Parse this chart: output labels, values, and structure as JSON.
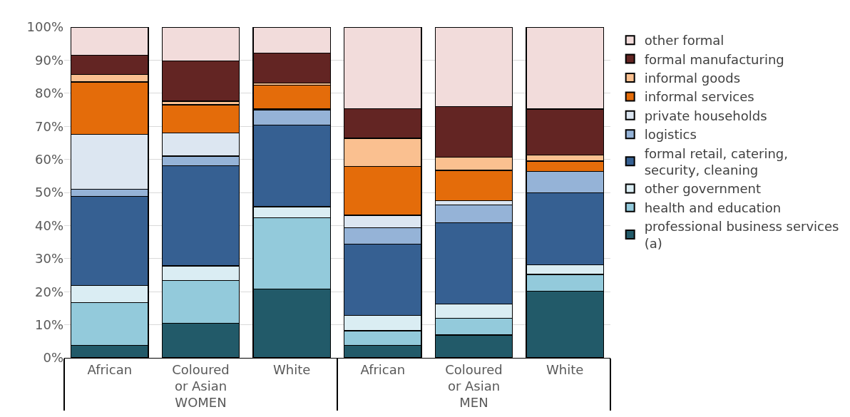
{
  "chart_data": {
    "type": "bar",
    "stacked": true,
    "categories": [
      "African",
      "Coloured or Asian",
      "White",
      "African",
      "Coloured or Asian",
      "White"
    ],
    "annotations": [
      "WOMEN",
      "MEN"
    ],
    "series": [
      {
        "name": "professional business services (a)",
        "color": "#225a69",
        "values": [
          3.7,
          10.4,
          20.8,
          3.7,
          6.9,
          20.1
        ]
      },
      {
        "name": "health and education",
        "color": "#93cadb",
        "values": [
          13.0,
          12.9,
          21.5,
          4.5,
          5.1,
          5.1
        ]
      },
      {
        "name": "other government",
        "color": "#daedf3",
        "values": [
          5.1,
          4.5,
          3.4,
          4.7,
          4.2,
          2.9
        ]
      },
      {
        "name": "formal retail, catering, security, cleaning",
        "color": "#366092",
        "values": [
          27.1,
          30.3,
          24.6,
          21.4,
          24.6,
          21.8
        ]
      },
      {
        "name": "logistics",
        "color": "#95b3d7",
        "values": [
          2.0,
          2.9,
          4.7,
          5.0,
          5.5,
          6.4
        ]
      },
      {
        "name": "private households",
        "color": "#dce6f1",
        "values": [
          16.7,
          7.0,
          0.3,
          3.8,
          1.3,
          0
        ]
      },
      {
        "name": "informal services",
        "color": "#e46c0a",
        "values": [
          15.8,
          8.5,
          7.1,
          14.8,
          9.1,
          3.2
        ]
      },
      {
        "name": "informal goods",
        "color": "#fac090",
        "values": [
          2.2,
          1.1,
          0.6,
          8.5,
          3.9,
          1.9
        ]
      },
      {
        "name": "formal manufacturing",
        "color": "#632523",
        "values": [
          5.9,
          12.2,
          9.1,
          8.9,
          15.4,
          13.8
        ]
      },
      {
        "name": "other formal",
        "color": "#f2dcdb",
        "values": [
          8.5,
          10.2,
          7.9,
          24.7,
          24.0,
          24.8
        ]
      }
    ],
    "ylim": [
      0,
      100
    ],
    "yticks": [
      {
        "value": 0,
        "label": "0%"
      },
      {
        "value": 10,
        "label": "10%"
      },
      {
        "value": 20,
        "label": "20%"
      },
      {
        "value": 30,
        "label": "30%"
      },
      {
        "value": 40,
        "label": "40%"
      },
      {
        "value": 50,
        "label": "50%"
      },
      {
        "value": 60,
        "label": "60%"
      },
      {
        "value": 70,
        "label": "70%"
      },
      {
        "value": 80,
        "label": "80%"
      },
      {
        "value": 90,
        "label": "90%"
      },
      {
        "value": 100,
        "label": "100%"
      }
    ],
    "grid": "y",
    "legend": "right"
  }
}
